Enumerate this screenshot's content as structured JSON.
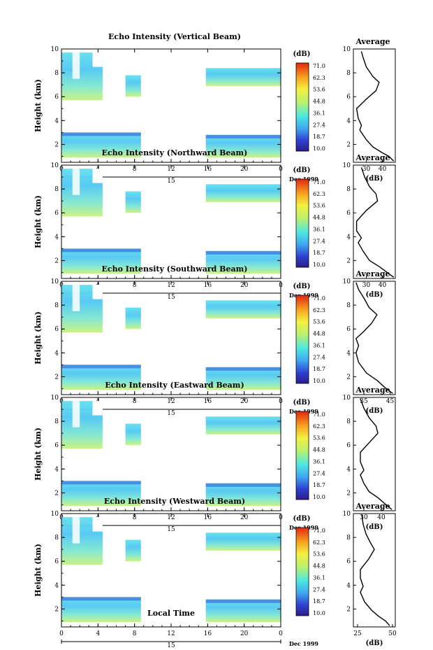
{
  "chart_data": {
    "type": "heatmap",
    "x_label": "Local Time",
    "date_day_label": "15",
    "date_label": "Dec 1999",
    "y_label": "Height (km)",
    "x_ticks": [
      "0",
      "4",
      "8",
      "12",
      "16",
      "20",
      "0"
    ],
    "y_ticks": [
      "2",
      "4",
      "6",
      "8",
      "10"
    ],
    "x_range": [
      0,
      24
    ],
    "y_range": [
      0.5,
      10.0
    ],
    "colorbar": {
      "unit": "(dB)",
      "ticks": [
        "71.0",
        "62.3",
        "53.6",
        "44.8",
        "36.1",
        "27.4",
        "18.7",
        "10.0"
      ],
      "range": [
        10.0,
        71.0
      ]
    },
    "echo_regions": [
      {
        "t0": 0,
        "t1": 8.7,
        "h0": 0.9,
        "h1": 3.0
      },
      {
        "t0": 0,
        "t1": 4.5,
        "h0": 5.7,
        "h1": 9.7
      },
      {
        "t0": 7.0,
        "t1": 8.7,
        "h0": 6.0,
        "h1": 7.8
      },
      {
        "t0": 15.8,
        "t1": 24,
        "h0": 0.9,
        "h1": 2.8
      },
      {
        "t0": 15.8,
        "t1": 24,
        "h0": 6.9,
        "h1": 8.4
      }
    ],
    "panels": [
      {
        "title": "Echo Intensity (Vertical Beam)",
        "profile_title": "Average",
        "profile_xlabel": "(dB)",
        "profile_ticks": [
          "30",
          "40"
        ],
        "profile_range": [
          22,
          48
        ],
        "profile": [
          [
            47,
            0.6
          ],
          [
            44,
            1.0
          ],
          [
            40,
            1.3
          ],
          [
            34,
            1.8
          ],
          [
            30,
            2.4
          ],
          [
            26,
            3.2
          ],
          [
            27,
            3.6
          ],
          [
            25,
            4.2
          ],
          [
            24,
            5.0
          ],
          [
            30,
            5.8
          ],
          [
            36,
            6.5
          ],
          [
            38,
            7.2
          ],
          [
            34,
            7.7
          ],
          [
            30,
            8.5
          ],
          [
            28,
            9.3
          ],
          [
            27,
            9.8
          ]
        ]
      },
      {
        "title": "Echo Intensity (Northward Beam)",
        "profile_title": "Average",
        "profile_xlabel": "(dB)",
        "profile_ticks": [
          "30",
          "40"
        ],
        "profile_range": [
          22,
          48
        ],
        "profile": [
          [
            47,
            0.6
          ],
          [
            42,
            1.1
          ],
          [
            38,
            1.5
          ],
          [
            32,
            2.0
          ],
          [
            28,
            2.8
          ],
          [
            25,
            3.5
          ],
          [
            27,
            3.9
          ],
          [
            24,
            4.5
          ],
          [
            24,
            5.3
          ],
          [
            30,
            6.2
          ],
          [
            37,
            7.0
          ],
          [
            36,
            7.6
          ],
          [
            32,
            8.2
          ],
          [
            29,
            9.0
          ],
          [
            27,
            9.8
          ]
        ]
      },
      {
        "title": "Echo Intensity (Southward Beam)",
        "profile_title": "Average",
        "profile_xlabel": "(dB)",
        "profile_ticks": [
          "35",
          "45"
        ],
        "profile_range": [
          31,
          47
        ],
        "profile": [
          [
            46,
            0.6
          ],
          [
            43,
            1.1
          ],
          [
            40,
            1.7
          ],
          [
            36,
            2.3
          ],
          [
            33,
            3.2
          ],
          [
            32,
            4.0
          ],
          [
            33,
            4.6
          ],
          [
            32,
            5.2
          ],
          [
            35,
            5.8
          ],
          [
            38,
            6.5
          ],
          [
            40,
            7.2
          ],
          [
            37,
            7.8
          ],
          [
            35,
            8.6
          ],
          [
            33,
            9.3
          ],
          [
            32,
            9.9
          ]
        ]
      },
      {
        "title": "Echo Intensity (Eastward Beam)",
        "profile_title": "Average",
        "profile_xlabel": "(dB)",
        "profile_ticks": [
          "30",
          "40"
        ],
        "profile_range": [
          24,
          48
        ],
        "profile": [
          [
            46,
            0.6
          ],
          [
            42,
            1.1
          ],
          [
            38,
            1.6
          ],
          [
            33,
            2.1
          ],
          [
            30,
            2.8
          ],
          [
            28,
            3.5
          ],
          [
            30,
            3.9
          ],
          [
            28,
            4.6
          ],
          [
            28,
            5.4
          ],
          [
            33,
            6.2
          ],
          [
            38,
            7.0
          ],
          [
            37,
            7.6
          ],
          [
            33,
            8.3
          ],
          [
            30,
            9.1
          ],
          [
            28,
            9.9
          ]
        ]
      },
      {
        "title": "Echo Intensity (Westward Beam)",
        "profile_title": "Average",
        "profile_xlabel": "(dB)",
        "profile_ticks": [
          "25",
          "50"
        ],
        "profile_range": [
          22,
          52
        ],
        "profile": [
          [
            48,
            0.6
          ],
          [
            45,
            1.0
          ],
          [
            40,
            1.4
          ],
          [
            35,
            1.9
          ],
          [
            30,
            2.6
          ],
          [
            27,
            3.4
          ],
          [
            29,
            3.9
          ],
          [
            27,
            4.6
          ],
          [
            27,
            5.3
          ],
          [
            33,
            6.2
          ],
          [
            37,
            7.0
          ],
          [
            34,
            7.6
          ],
          [
            31,
            8.3
          ],
          [
            29,
            9.1
          ],
          [
            28,
            9.9
          ]
        ]
      }
    ]
  }
}
